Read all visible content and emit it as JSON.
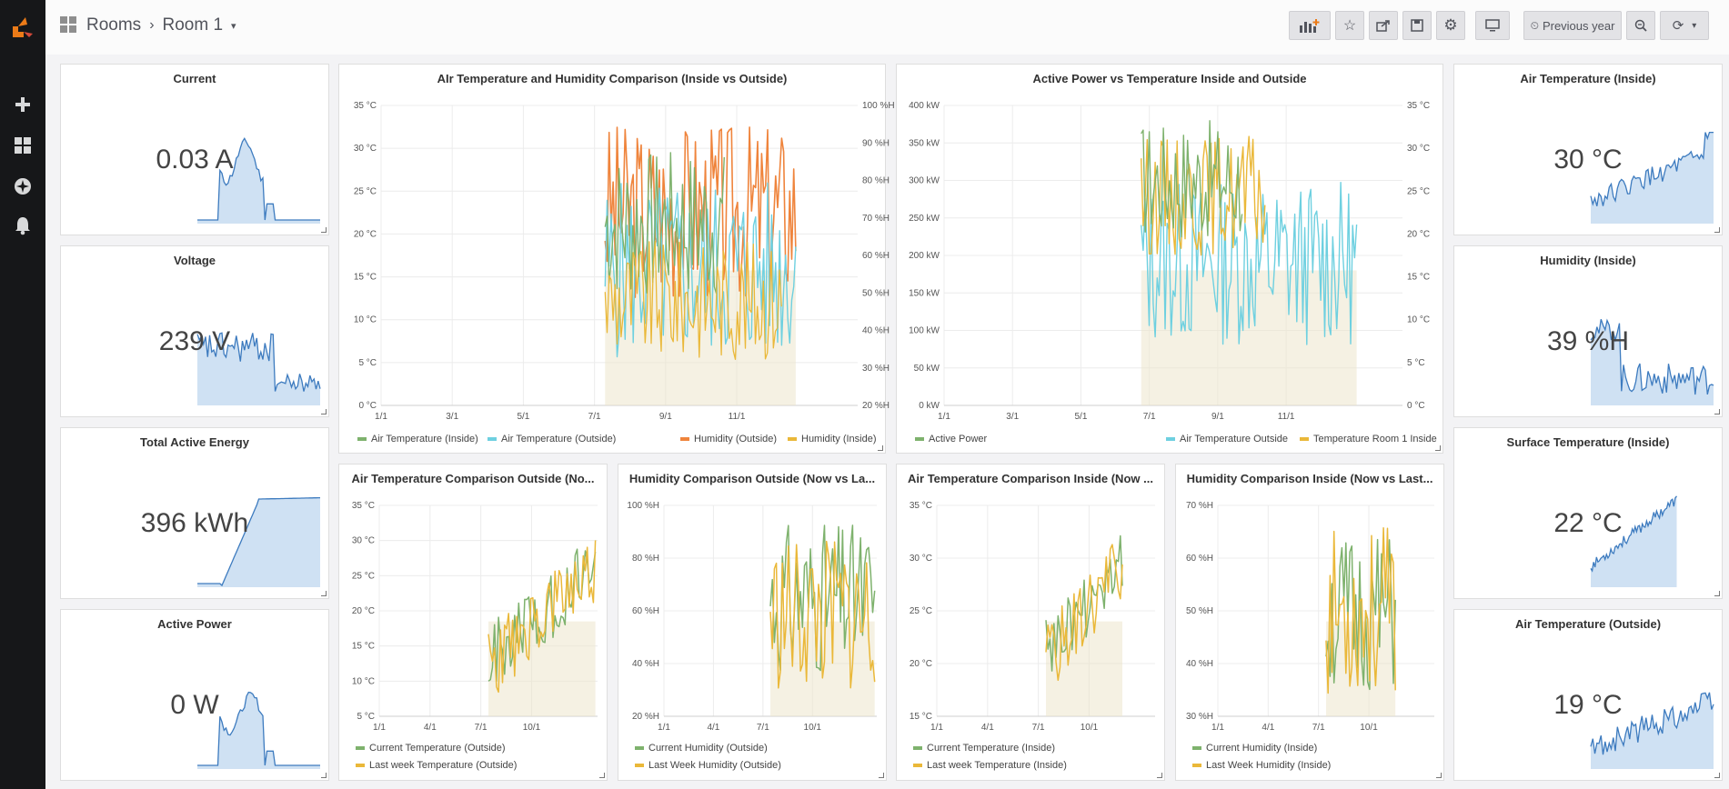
{
  "breadcrumb": {
    "parent": "Rooms",
    "current": "Room 1"
  },
  "toolbar": {
    "time_range": "Previous year"
  },
  "colors": {
    "green": "#7eb26d",
    "cyan": "#6ed0e0",
    "orange": "#ef843c",
    "yellow": "#eab839",
    "spark": "#3d7bbf",
    "spark_fill": "#cfe1f3"
  },
  "stats": [
    {
      "title": "Current",
      "value": "0.03 A"
    },
    {
      "title": "Voltage",
      "value": "239 V"
    },
    {
      "title": "Total Active Energy",
      "value": "396 kWh"
    },
    {
      "title": "Active Power",
      "value": "0 W"
    },
    {
      "title": "Air Temperature (Inside)",
      "value": "30 °C"
    },
    {
      "title": "Humidity (Inside)",
      "value": "39 %H"
    },
    {
      "title": "Surface Temperature (Inside)",
      "value": "22 °C"
    },
    {
      "title": "Air Temperature (Outside)",
      "value": "19 °C"
    }
  ],
  "charts": {
    "c1": {
      "title": "AIr Temperature and Humidity Comparison (Inside vs Outside)",
      "x_ticks": [
        "1/1",
        "3/1",
        "5/1",
        "7/1",
        "9/1",
        "11/1"
      ],
      "y_left_ticks": [
        "35 °C",
        "30 °C",
        "25 °C",
        "20 °C",
        "15 °C",
        "10 °C",
        "5 °C",
        "0 °C"
      ],
      "y_right_ticks": [
        "100 %H",
        "90 %H",
        "80 %H",
        "70 %H",
        "60 %H",
        "50 %H",
        "40 %H",
        "30 %H",
        "20 %H"
      ],
      "legend": [
        "Air Temperature (Inside)",
        "Air Temperature (Outside)",
        "Humidity (Outside)",
        "Humidity (Inside)"
      ]
    },
    "c2": {
      "title": "Active Power vs Temperature Inside and Outside",
      "x_ticks": [
        "1/1",
        "3/1",
        "5/1",
        "7/1",
        "9/1",
        "11/1"
      ],
      "y_left_ticks": [
        "400 kW",
        "350 kW",
        "300 kW",
        "250 kW",
        "200 kW",
        "150 kW",
        "100 kW",
        "50 kW",
        "0 kW"
      ],
      "y_right_ticks": [
        "35 °C",
        "30 °C",
        "25 °C",
        "20 °C",
        "15 °C",
        "10 °C",
        "5 °C",
        "0 °C"
      ],
      "legend": [
        "Active Power",
        "Air Temperature Outside",
        "Temperature Room 1 Inside"
      ]
    },
    "c3": {
      "title": "Air Temperature Comparison Outside (No...",
      "x_ticks": [
        "1/1",
        "4/1",
        "7/1",
        "10/1"
      ],
      "y_ticks": [
        "35 °C",
        "30 °C",
        "25 °C",
        "20 °C",
        "15 °C",
        "10 °C",
        "5 °C"
      ],
      "legend": [
        "Current Temperature (Outside)",
        "Last week Temperature (Outside)"
      ]
    },
    "c4": {
      "title": "Humidity Comparison Outside (Now vs La...",
      "x_ticks": [
        "1/1",
        "4/1",
        "7/1",
        "10/1"
      ],
      "y_ticks": [
        "100 %H",
        "80 %H",
        "60 %H",
        "40 %H",
        "20 %H"
      ],
      "legend": [
        "Current Humidity (Outside)",
        "Last Week Humidity (Outside)"
      ]
    },
    "c5": {
      "title": "Air Temperature Comparison Inside (Now ...",
      "x_ticks": [
        "1/1",
        "4/1",
        "7/1",
        "10/1"
      ],
      "y_ticks": [
        "35 °C",
        "30 °C",
        "25 °C",
        "20 °C",
        "15 °C"
      ],
      "legend": [
        "Current Temperature (Inside)",
        "Last week Temperature (Inside)"
      ]
    },
    "c6": {
      "title": "Humidity Comparison Inside (Now vs Last...",
      "x_ticks": [
        "1/1",
        "4/1",
        "7/1",
        "10/1"
      ],
      "y_ticks": [
        "70 %H",
        "60 %H",
        "50 %H",
        "40 %H",
        "30 %H"
      ],
      "legend": [
        "Current Humidity (Inside)",
        "Last Week Humidity (Inside)"
      ]
    }
  }
}
